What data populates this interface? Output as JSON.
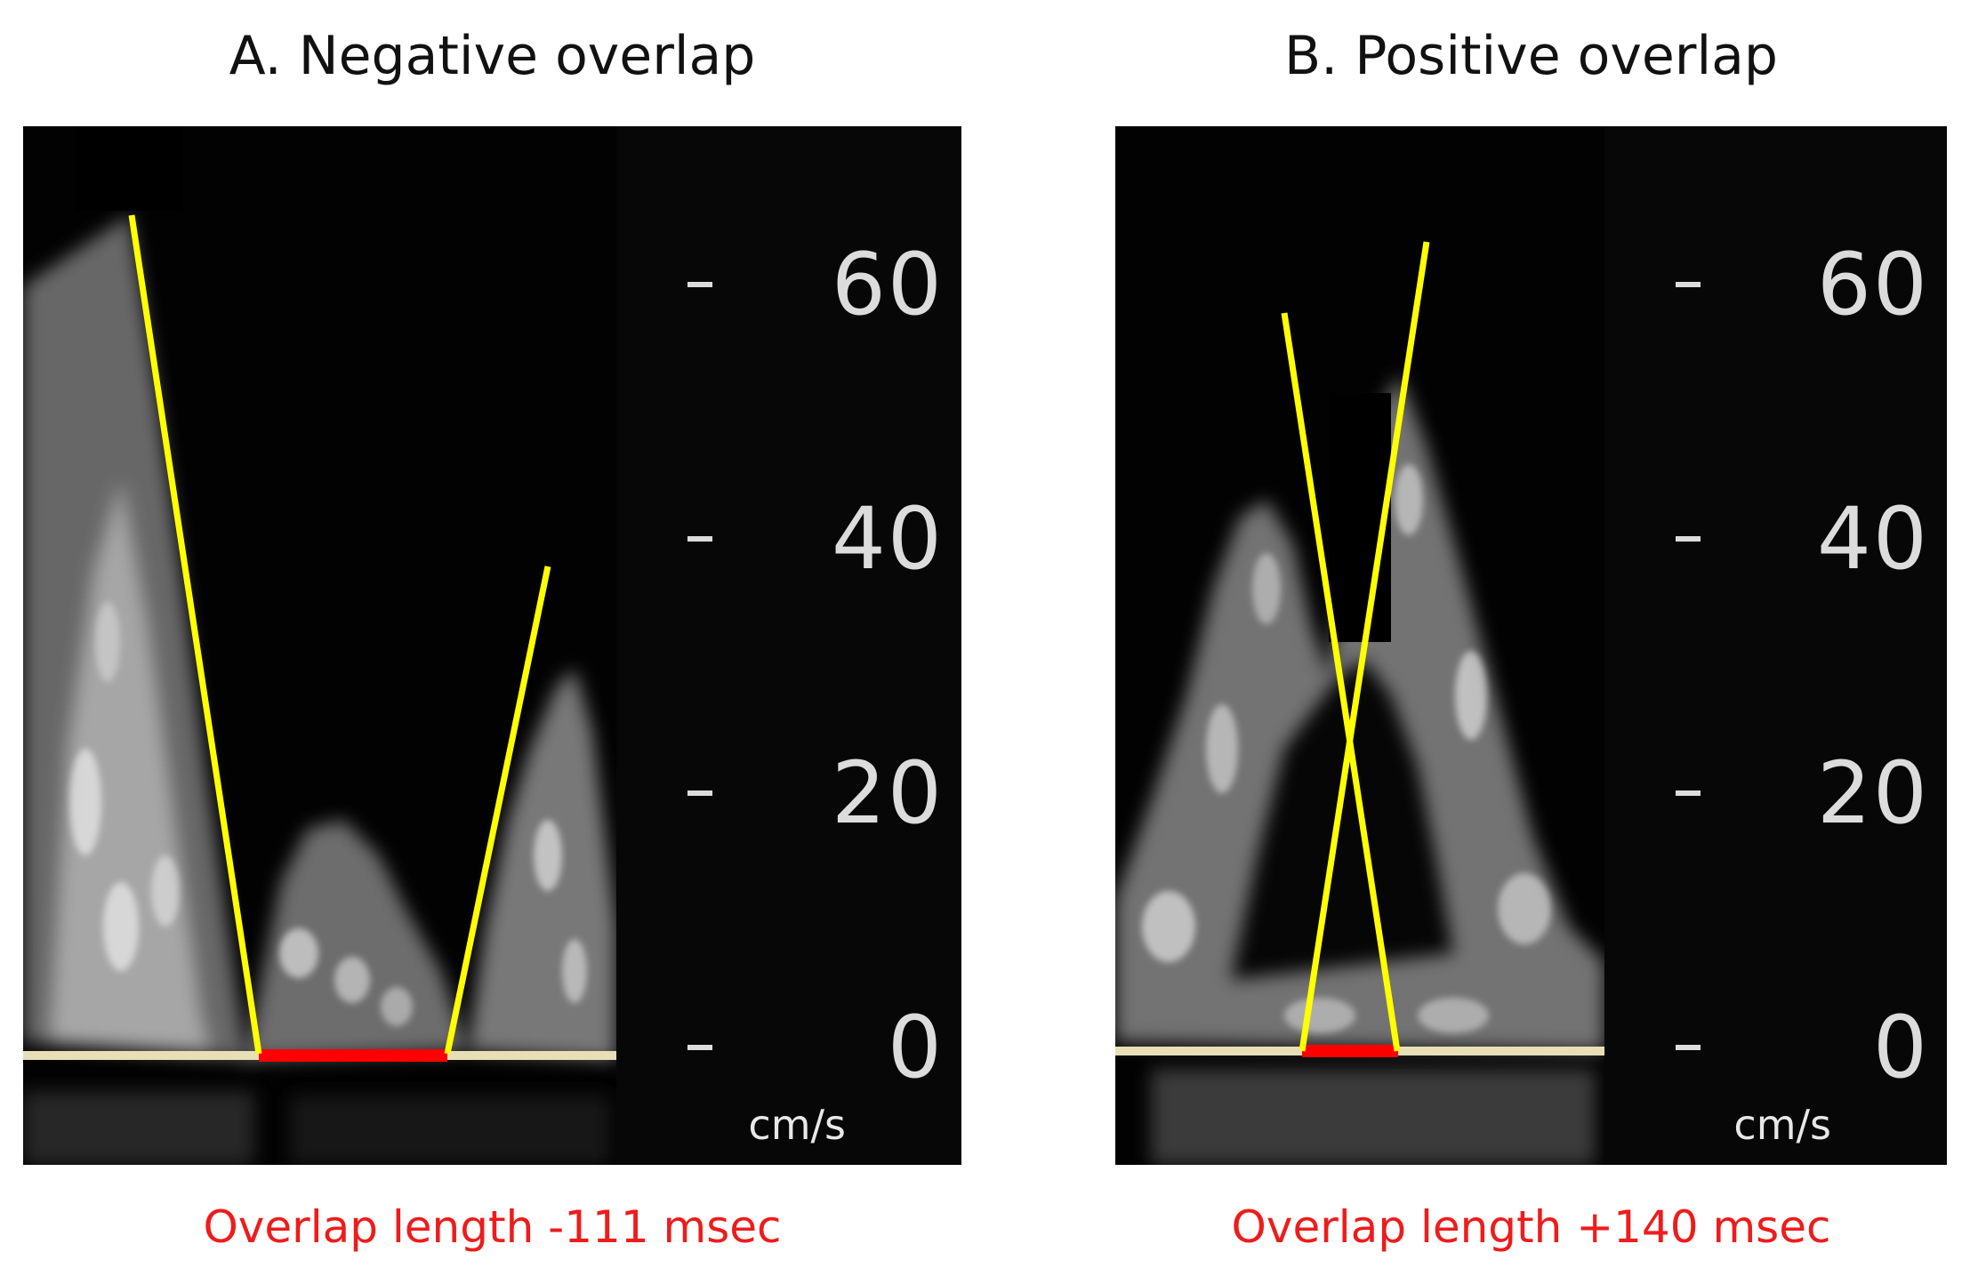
{
  "panels": [
    {
      "title": "A. Negative overlap",
      "scale_ticks": [
        "60",
        "40",
        "20",
        "0"
      ],
      "unit": "cm/s",
      "caption": "Overlap length -111 msec"
    },
    {
      "title": "B. Positive overlap",
      "scale_ticks": [
        "60",
        "40",
        "20",
        "0"
      ],
      "unit": "cm/s",
      "caption": "Overlap length +140 msec"
    }
  ],
  "colors": {
    "marker_line": "#ffff00",
    "overlap_segment": "#ff0000",
    "baseline": "#e6dfb8",
    "caption_text": "#ee1c1c"
  }
}
